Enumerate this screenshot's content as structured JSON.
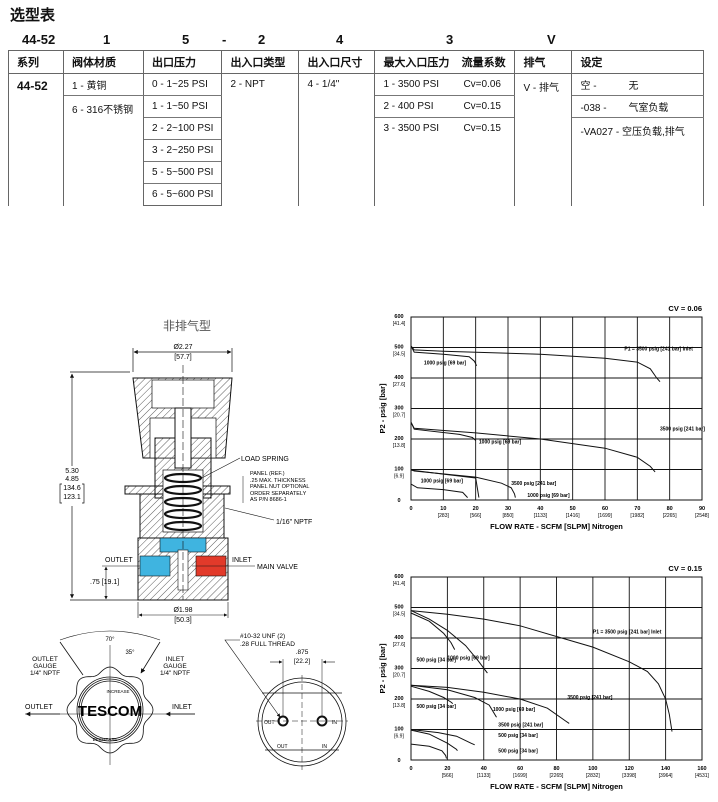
{
  "title": "选型表",
  "code_row": [
    "44-52",
    "1",
    "5",
    "-",
    "2",
    "4",
    "3",
    "V"
  ],
  "table": {
    "headers": [
      "系列",
      "阀体材质",
      "出口压力",
      "出入口类型",
      "出入口尺寸",
      "最大入口压力",
      "流量系数",
      "排气",
      "设定"
    ],
    "series": "44-52",
    "material": [
      "1 - 黄铜",
      "6 - 316不锈钢"
    ],
    "outlet_pressure": [
      "0 - 1~25 PSI",
      "1 - 1~50 PSI",
      "2 - 2~100 PSI",
      "3 - 2~250 PSI",
      "5 - 5~500 PSI",
      "6 - 5~600 PSI"
    ],
    "port_type": "2 - NPT",
    "port_size": "4 - 1/4\"",
    "max_inlet": [
      {
        "p": "1 - 3500 PSI",
        "cv": "Cv=0.06"
      },
      {
        "p": "2 - 400 PSI",
        "cv": "Cv=0.15"
      },
      {
        "p": "3 - 3500 PSI",
        "cv": "Cv=0.15"
      }
    ],
    "vent": "V - 排气",
    "options": [
      {
        "code": "空 -",
        "desc": "无"
      },
      {
        "code": "-038 -",
        "desc": "气室负载"
      },
      {
        "code": "-VA027 -",
        "desc": "空压负载,排气"
      }
    ]
  },
  "drawing": {
    "title": "非排气型",
    "top_dim": [
      "Ø2.27",
      "[57.7]"
    ],
    "height_dim": [
      "5.30",
      "4.85",
      "134.6",
      "123.1"
    ],
    "load_spring": "LOAD SPRING",
    "panel_note": [
      "PANEL (REF.)",
      ".25 MAX. THICKNESS",
      "PANEL NUT OPTIONAL",
      "ORDER SEPARATELY",
      "AS P/N 8686-1"
    ],
    "nptf": "1/16\" NPTF",
    "outlet": "OUTLET",
    "inlet": "INLET",
    "main_valve": "MAIN VALVE",
    "port_dim": ".75 [19.1]",
    "bottom_dim": [
      "Ø1.98",
      "[50.3]"
    ],
    "knob_view": {
      "angle70": "70°",
      "angle35": "35°",
      "outlet_gauge": [
        "OUTLET",
        "GAUGE",
        "1/4\" NPTF"
      ],
      "inlet_gauge": [
        "INLET",
        "GAUGE",
        "1/4\" NPTF"
      ],
      "outlet": "OUTLET",
      "inlet": "INLET",
      "logo": "TESCOM",
      "increase": "INCREASE",
      "decrease": "DECREASE"
    },
    "bottom_view": {
      "thread": [
        "#10-32 UNF (2)",
        ".28 FULL THREAD"
      ],
      "spacing": [
        ".875",
        "[22.2]"
      ],
      "out": "OUT",
      "in": "IN"
    },
    "colors": {
      "outlet": "#3fb4e0",
      "inlet": "#e23a2a"
    }
  },
  "chart_data": [
    {
      "type": "line",
      "title": "CV = 0.06",
      "cv_label": "0.06",
      "xlabel": "FLOW RATE - SCFM [SLPM] Nitrogen",
      "ylabel": "P2 - psig [bar]",
      "xlim": [
        0,
        90
      ],
      "ylim": [
        0,
        600
      ],
      "grid": true,
      "xticks": [
        [
          "0",
          ""
        ],
        [
          "10",
          "[283]"
        ],
        [
          "20",
          "[566]"
        ],
        [
          "30",
          "[850]"
        ],
        [
          "40",
          "[1133]"
        ],
        [
          "50",
          "[1416]"
        ],
        [
          "60",
          "[1699]"
        ],
        [
          "70",
          "[1982]"
        ],
        [
          "80",
          "[2265]"
        ],
        [
          "90",
          "[2548]"
        ]
      ],
      "yticks": [
        [
          "0",
          ""
        ],
        [
          "100",
          "[6.9]"
        ],
        [
          "200",
          "[13.8]"
        ],
        [
          "300",
          "[20.7]"
        ],
        [
          "400",
          "[27.6]"
        ],
        [
          "500",
          "[34.5]"
        ],
        [
          "600",
          "[41.4]"
        ]
      ],
      "series": [
        {
          "name": "P1 = 3500 psig [241 bar] Inlet",
          "points": [
            [
              0,
              505
            ],
            [
              1,
              492
            ],
            [
              10,
              488
            ],
            [
              40,
              478
            ],
            [
              60,
              465
            ],
            [
              70,
              452
            ],
            [
              74,
              430
            ],
            [
              76,
              400
            ],
            [
              77,
              388
            ]
          ]
        },
        {
          "name": "1000 psig [69 bar]",
          "points": [
            [
              0,
              505
            ],
            [
              1,
              485
            ],
            [
              10,
              478
            ],
            [
              18,
              470
            ],
            [
              19.6,
              455
            ],
            [
              20.3,
              440
            ]
          ]
        },
        {
          "name": "3500 psig [241 bar]",
          "points": [
            [
              0,
              255
            ],
            [
              1,
              235
            ],
            [
              20,
              220
            ],
            [
              40,
              200
            ],
            [
              60,
              170
            ],
            [
              70,
              140
            ],
            [
              74,
              110
            ],
            [
              75.5,
              92
            ]
          ]
        },
        {
          "name": "1000 psig [69 bar]",
          "points": [
            [
              0,
              255
            ],
            [
              1,
              232
            ],
            [
              15,
              215
            ],
            [
              19,
              205
            ],
            [
              20,
              195
            ]
          ]
        },
        {
          "name": "3500 psig [241 bar]",
          "points": [
            [
              0,
              100
            ],
            [
              1,
              95
            ],
            [
              20,
              75
            ],
            [
              28,
              55
            ],
            [
              31,
              40
            ],
            [
              32,
              20
            ],
            [
              32.3,
              8
            ]
          ]
        },
        {
          "name": "1000 psig [69 bar]",
          "points": [
            [
              0,
              98
            ],
            [
              10,
              85
            ],
            [
              20,
              72
            ],
            [
              20.5,
              40
            ],
            [
              21,
              8
            ]
          ]
        },
        {
          "name": "1000 psig [69 bar]",
          "points": [
            [
              0,
              52
            ],
            [
              2,
              40
            ],
            [
              10,
              34
            ],
            [
              16,
              25
            ],
            [
              17.5,
              8
            ]
          ]
        }
      ]
    },
    {
      "type": "line",
      "title": "CV = 0.15",
      "cv_label": "0.15",
      "xlabel": "FLOW RATE - SCFM [SLPM] Nitrogen",
      "ylabel": "P2 - psig [bar]",
      "xlim": [
        0,
        160
      ],
      "ylim": [
        0,
        600
      ],
      "grid": true,
      "xticks": [
        [
          "0",
          ""
        ],
        [
          "20",
          "[566]"
        ],
        [
          "40",
          "[1133]"
        ],
        [
          "60",
          "[1699]"
        ],
        [
          "80",
          "[2265]"
        ],
        [
          "100",
          "[2832]"
        ],
        [
          "120",
          "[3398]"
        ],
        [
          "140",
          "[3964]"
        ],
        [
          "160",
          "[4531]"
        ]
      ],
      "yticks": [
        [
          "0",
          ""
        ],
        [
          "100",
          "[6.9]"
        ],
        [
          "200",
          "[13.8]"
        ],
        [
          "300",
          "[20.7]"
        ],
        [
          "400",
          "[27.6]"
        ],
        [
          "500",
          "[34.5]"
        ],
        [
          "600",
          "[41.4]"
        ]
      ],
      "series": [
        {
          "name": "P1 = 3500 psig [241 bar] Inlet",
          "points": [
            [
              0,
              490
            ],
            [
              20,
              478
            ],
            [
              40,
              462
            ],
            [
              60,
              440
            ],
            [
              80,
              405
            ],
            [
              100,
              370
            ],
            [
              120,
              322
            ],
            [
              130,
              290
            ],
            [
              136,
              250
            ],
            [
              140,
              200
            ],
            [
              142,
              150
            ],
            [
              143.5,
              93
            ]
          ]
        },
        {
          "name": "1000 psig [69 bar]",
          "points": [
            [
              0,
              490
            ],
            [
              10,
              462
            ],
            [
              20,
              425
            ],
            [
              30,
              375
            ],
            [
              37,
              325
            ],
            [
              42,
              285
            ]
          ]
        },
        {
          "name": "500 psig [34 bar]",
          "points": [
            [
              0,
              482
            ],
            [
              10,
              455
            ],
            [
              18,
              415
            ],
            [
              22,
              385
            ],
            [
              24,
              362
            ]
          ]
        },
        {
          "name": "3500 psig [241 bar]",
          "points": [
            [
              0,
              245
            ],
            [
              20,
              238
            ],
            [
              40,
              222
            ],
            [
              60,
              200
            ],
            [
              75,
              170
            ],
            [
              85,
              128
            ],
            [
              87,
              120
            ]
          ]
        },
        {
          "name": "1000 psig [69 bar]",
          "points": [
            [
              0,
              245
            ],
            [
              20,
              230
            ],
            [
              35,
              205
            ],
            [
              43,
              180
            ],
            [
              46,
              150
            ],
            [
              47,
              140
            ]
          ]
        },
        {
          "name": "500 psig [34 bar]",
          "points": [
            [
              0,
              242
            ],
            [
              10,
              225
            ],
            [
              18,
              205
            ],
            [
              22,
              190
            ],
            [
              23,
              185
            ]
          ]
        },
        {
          "name": "3500 psig [241 bar]",
          "points": [
            [
              0,
              100
            ],
            [
              15,
              90
            ],
            [
              25,
              78
            ],
            [
              33,
              55
            ],
            [
              35,
              50
            ]
          ]
        },
        {
          "name": "500 psig [34 bar]",
          "points": [
            [
              0,
              98
            ],
            [
              10,
              85
            ],
            [
              20,
              55
            ],
            [
              25,
              35
            ],
            [
              25.5,
              30
            ]
          ]
        },
        {
          "name": "500 psig [34 bar]",
          "points": [
            [
              0,
              52
            ],
            [
              10,
              45
            ],
            [
              17,
              30
            ],
            [
              19,
              15
            ],
            [
              19.5,
              5
            ]
          ]
        }
      ]
    }
  ]
}
